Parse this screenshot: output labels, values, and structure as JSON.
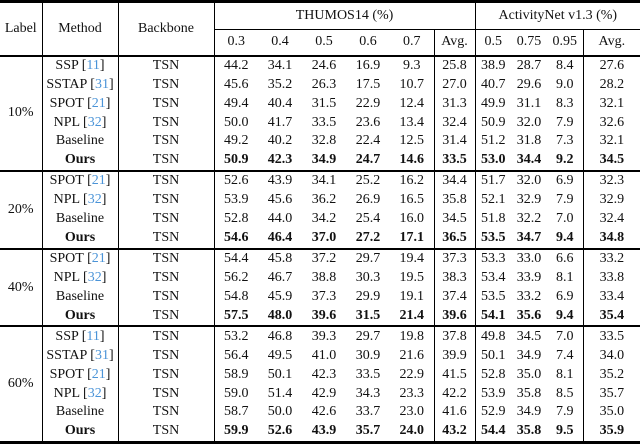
{
  "colors": {
    "citation": "#4b94d8",
    "rule": "#000000",
    "text": "#111111",
    "background": "#ffffff"
  },
  "header": {
    "label": "Label",
    "method": "Method",
    "backbone": "Backbone",
    "group_thumos": "THUMOS14 (%)",
    "group_anet": "ActivityNet v1.3 (%)",
    "thumos_cols": [
      "0.3",
      "0.4",
      "0.5",
      "0.6",
      "0.7",
      "Avg."
    ],
    "anet_cols": [
      "0.5",
      "0.75",
      "0.95",
      "Avg."
    ]
  },
  "blocks": [
    {
      "label": "10%",
      "rows": [
        {
          "method": "SSP",
          "cite": "11",
          "backbone": "TSN",
          "bold": false,
          "thumos": [
            "44.2",
            "34.1",
            "24.6",
            "16.9",
            "9.3",
            "25.8"
          ],
          "anet": [
            "38.9",
            "28.7",
            "8.4",
            "27.6"
          ]
        },
        {
          "method": "SSTAP",
          "cite": "31",
          "backbone": "TSN",
          "bold": false,
          "thumos": [
            "45.6",
            "35.2",
            "26.3",
            "17.5",
            "10.7",
            "27.0"
          ],
          "anet": [
            "40.7",
            "29.6",
            "9.0",
            "28.2"
          ]
        },
        {
          "method": "SPOT",
          "cite": "21",
          "backbone": "TSN",
          "bold": false,
          "thumos": [
            "49.4",
            "40.4",
            "31.5",
            "22.9",
            "12.4",
            "31.3"
          ],
          "anet": [
            "49.9",
            "31.1",
            "8.3",
            "32.1"
          ]
        },
        {
          "method": "NPL",
          "cite": "32",
          "backbone": "TSN",
          "bold": false,
          "thumos": [
            "50.0",
            "41.7",
            "33.5",
            "23.6",
            "13.4",
            "32.4"
          ],
          "anet": [
            "50.9",
            "32.0",
            "7.9",
            "32.6"
          ]
        },
        {
          "method": "Baseline",
          "cite": null,
          "backbone": "TSN",
          "bold": false,
          "thumos": [
            "49.2",
            "40.2",
            "32.8",
            "22.4",
            "12.5",
            "31.4"
          ],
          "anet": [
            "51.2",
            "31.8",
            "7.3",
            "32.1"
          ]
        },
        {
          "method": "Ours",
          "cite": null,
          "backbone": "TSN",
          "bold": true,
          "thumos": [
            "50.9",
            "42.3",
            "34.9",
            "24.7",
            "14.6",
            "33.5"
          ],
          "anet": [
            "53.0",
            "34.4",
            "9.2",
            "34.5"
          ]
        }
      ]
    },
    {
      "label": "20%",
      "rows": [
        {
          "method": "SPOT",
          "cite": "21",
          "backbone": "TSN",
          "bold": false,
          "thumos": [
            "52.6",
            "43.9",
            "34.1",
            "25.2",
            "16.2",
            "34.4"
          ],
          "anet": [
            "51.7",
            "32.0",
            "6.9",
            "32.3"
          ]
        },
        {
          "method": "NPL",
          "cite": "32",
          "backbone": "TSN",
          "bold": false,
          "thumos": [
            "53.9",
            "45.6",
            "36.2",
            "26.9",
            "16.5",
            "35.8"
          ],
          "anet": [
            "52.1",
            "32.9",
            "7.9",
            "32.9"
          ]
        },
        {
          "method": "Baseline",
          "cite": null,
          "backbone": "TSN",
          "bold": false,
          "thumos": [
            "52.8",
            "44.0",
            "34.2",
            "25.4",
            "16.0",
            "34.5"
          ],
          "anet": [
            "51.8",
            "32.2",
            "7.0",
            "32.4"
          ]
        },
        {
          "method": "Ours",
          "cite": null,
          "backbone": "TSN",
          "bold": true,
          "thumos": [
            "54.6",
            "46.4",
            "37.0",
            "27.2",
            "17.1",
            "36.5"
          ],
          "anet": [
            "53.5",
            "34.7",
            "9.4",
            "34.8"
          ]
        }
      ]
    },
    {
      "label": "40%",
      "rows": [
        {
          "method": "SPOT",
          "cite": "21",
          "backbone": "TSN",
          "bold": false,
          "thumos": [
            "54.4",
            "45.8",
            "37.2",
            "29.7",
            "19.4",
            "37.3"
          ],
          "anet": [
            "53.3",
            "33.0",
            "6.6",
            "33.2"
          ]
        },
        {
          "method": "NPL",
          "cite": "32",
          "backbone": "TSN",
          "bold": false,
          "thumos": [
            "56.2",
            "46.7",
            "38.8",
            "30.3",
            "19.5",
            "38.3"
          ],
          "anet": [
            "53.4",
            "33.9",
            "8.1",
            "33.8"
          ]
        },
        {
          "method": "Baseline",
          "cite": null,
          "backbone": "TSN",
          "bold": false,
          "thumos": [
            "54.8",
            "45.9",
            "37.3",
            "29.9",
            "19.1",
            "37.4"
          ],
          "anet": [
            "53.5",
            "33.2",
            "6.9",
            "33.4"
          ]
        },
        {
          "method": "Ours",
          "cite": null,
          "backbone": "TSN",
          "bold": true,
          "thumos": [
            "57.5",
            "48.0",
            "39.6",
            "31.5",
            "21.4",
            "39.6"
          ],
          "anet": [
            "54.1",
            "35.6",
            "9.4",
            "35.4"
          ]
        }
      ]
    },
    {
      "label": "60%",
      "rows": [
        {
          "method": "SSP",
          "cite": "11",
          "backbone": "TSN",
          "bold": false,
          "thumos": [
            "53.2",
            "46.8",
            "39.3",
            "29.7",
            "19.8",
            "37.8"
          ],
          "anet": [
            "49.8",
            "34.5",
            "7.0",
            "33.5"
          ]
        },
        {
          "method": "SSTAP",
          "cite": "31",
          "backbone": "TSN",
          "bold": false,
          "thumos": [
            "56.4",
            "49.5",
            "41.0",
            "30.9",
            "21.6",
            "39.9"
          ],
          "anet": [
            "50.1",
            "34.9",
            "7.4",
            "34.0"
          ]
        },
        {
          "method": "SPOT",
          "cite": "21",
          "backbone": "TSN",
          "bold": false,
          "thumos": [
            "58.9",
            "50.1",
            "42.3",
            "33.5",
            "22.9",
            "41.5"
          ],
          "anet": [
            "52.8",
            "35.0",
            "8.1",
            "35.2"
          ]
        },
        {
          "method": "NPL",
          "cite": "32",
          "backbone": "TSN",
          "bold": false,
          "thumos": [
            "59.0",
            "51.4",
            "42.9",
            "34.3",
            "23.3",
            "42.2"
          ],
          "anet": [
            "53.9",
            "35.8",
            "8.5",
            "35.7"
          ]
        },
        {
          "method": "Baseline",
          "cite": null,
          "backbone": "TSN",
          "bold": false,
          "thumos": [
            "58.7",
            "50.0",
            "42.6",
            "33.7",
            "23.0",
            "41.6"
          ],
          "anet": [
            "52.9",
            "34.9",
            "7.9",
            "35.0"
          ]
        },
        {
          "method": "Ours",
          "cite": null,
          "backbone": "TSN",
          "bold": true,
          "thumos": [
            "59.9",
            "52.6",
            "43.9",
            "35.7",
            "24.0",
            "43.2"
          ],
          "anet": [
            "54.4",
            "35.8",
            "9.5",
            "35.9"
          ]
        }
      ]
    }
  ]
}
